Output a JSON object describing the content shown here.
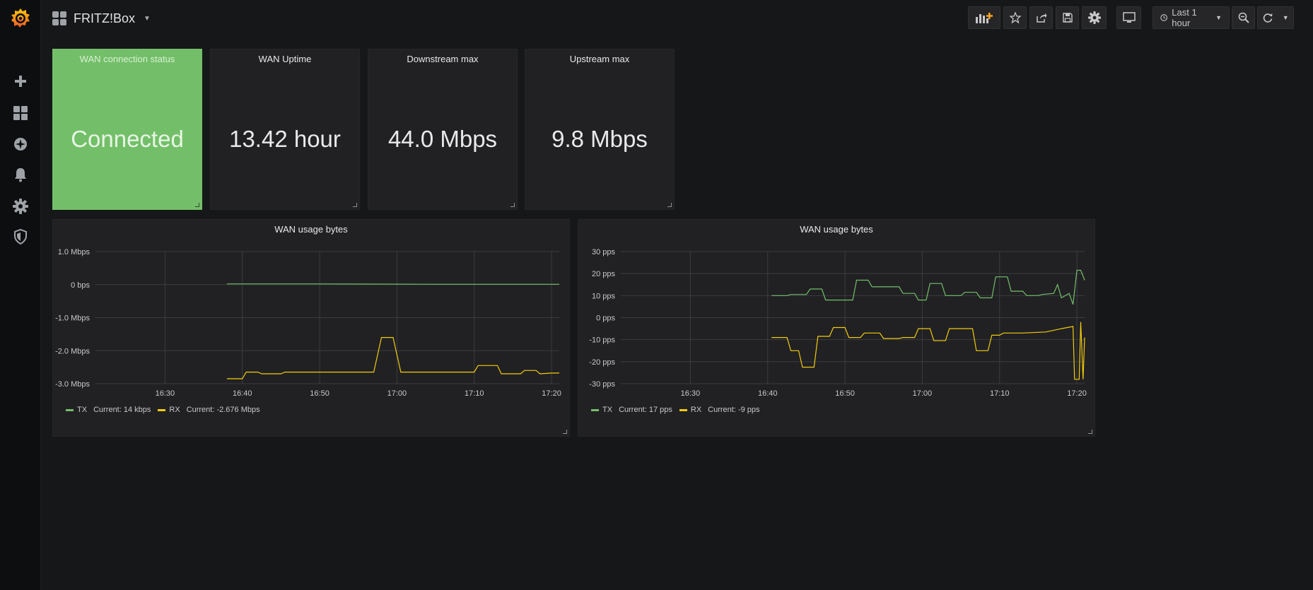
{
  "dashboard": {
    "title": "FRITZ!Box"
  },
  "toolbar": {
    "time_range": "Last 1 hour"
  },
  "colors": {
    "green": "#73bf69",
    "yellow": "#f2cc0c",
    "panel_bg": "#212124",
    "page_bg": "#161719"
  },
  "sidebar": {
    "items": [
      {
        "icon": "plus-icon"
      },
      {
        "icon": "dashboards-icon"
      },
      {
        "icon": "explore-compass-icon"
      },
      {
        "icon": "alerting-bell-icon"
      },
      {
        "icon": "configuration-gear-icon"
      },
      {
        "icon": "admin-shield-icon"
      }
    ]
  },
  "stats": [
    {
      "title": "WAN connection status",
      "value": "Connected"
    },
    {
      "title": "WAN Uptime",
      "value": "13.42 hour"
    },
    {
      "title": "Downstream max",
      "value": "44.0 Mbps"
    },
    {
      "title": "Upstream max",
      "value": "9.8 Mbps"
    }
  ],
  "graphs": [
    {
      "title": "WAN usage bytes",
      "legend": [
        {
          "name": "TX",
          "current": "Current: 14 kbps"
        },
        {
          "name": "RX",
          "current": "Current: -2.676 Mbps"
        }
      ]
    },
    {
      "title": "WAN usage bytes",
      "legend": [
        {
          "name": "TX",
          "current": "Current: 17 pps"
        },
        {
          "name": "RX",
          "current": "Current: -9 pps"
        }
      ]
    }
  ],
  "chart_data": [
    {
      "type": "line",
      "title": "WAN usage bytes",
      "yunit": "Mbps",
      "ylim": [
        -3.0,
        1.0
      ],
      "yticks": [
        1.0,
        0.0,
        -1.0,
        -2.0,
        -3.0
      ],
      "ytick_labels": [
        "1.0 Mbps",
        "0 bps",
        "-1.0 Mbps",
        "-2.0 Mbps",
        "-3.0 Mbps"
      ],
      "xlim": [
        "16:21",
        "17:21"
      ],
      "xticks": [
        "16:30",
        "16:40",
        "16:50",
        "17:00",
        "17:10",
        "17:20"
      ],
      "grid": true,
      "legend_position": "bottom-left",
      "series": [
        {
          "name": "TX",
          "color": "#73bf69",
          "points": [
            [
              "16:38",
              0.02
            ],
            [
              "16:50",
              0.02
            ],
            [
              "17:05",
              0.01
            ],
            [
              "17:20",
              0.01
            ],
            [
              "17:21",
              0.01
            ]
          ]
        },
        {
          "name": "RX",
          "color": "#f2cc0c",
          "points": [
            [
              "16:38",
              -2.85
            ],
            [
              "16:40",
              -2.85
            ],
            [
              "16:40.5",
              -2.65
            ],
            [
              "16:42",
              -2.65
            ],
            [
              "16:42.5",
              -2.7
            ],
            [
              "16:45",
              -2.7
            ],
            [
              "16:45.5",
              -2.65
            ],
            [
              "16:52",
              -2.65
            ],
            [
              "16:57",
              -2.65
            ],
            [
              "16:58",
              -1.6
            ],
            [
              "16:59.5",
              -1.6
            ],
            [
              "17:00.5",
              -2.65
            ],
            [
              "17:05",
              -2.65
            ],
            [
              "17:10",
              -2.65
            ],
            [
              "17:10.5",
              -2.45
            ],
            [
              "17:13",
              -2.45
            ],
            [
              "17:13.5",
              -2.7
            ],
            [
              "17:16",
              -2.7
            ],
            [
              "17:16.5",
              -2.6
            ],
            [
              "17:18",
              -2.6
            ],
            [
              "17:18.5",
              -2.7
            ],
            [
              "17:20",
              -2.68
            ],
            [
              "17:21",
              -2.676
            ]
          ]
        }
      ]
    },
    {
      "type": "line",
      "title": "WAN usage bytes",
      "yunit": "pps",
      "ylim": [
        -30,
        30
      ],
      "yticks": [
        30,
        20,
        10,
        0,
        -10,
        -20,
        -30
      ],
      "ytick_labels": [
        "30 pps",
        "20 pps",
        "10 pps",
        "0 pps",
        "-10 pps",
        "-20 pps",
        "-30 pps"
      ],
      "xlim": [
        "16:21",
        "17:21"
      ],
      "xticks": [
        "16:30",
        "16:40",
        "16:50",
        "17:00",
        "17:10",
        "17:20"
      ],
      "grid": true,
      "legend_position": "bottom-left",
      "series": [
        {
          "name": "TX",
          "color": "#73bf69",
          "points": [
            [
              "16:40.5",
              10
            ],
            [
              "16:42.5",
              10
            ],
            [
              "16:43",
              10.5
            ],
            [
              "16:45",
              10.5
            ],
            [
              "16:45.5",
              13
            ],
            [
              "16:47",
              13
            ],
            [
              "16:47.5",
              8
            ],
            [
              "16:51",
              8
            ],
            [
              "16:51.5",
              17
            ],
            [
              "16:53",
              17
            ],
            [
              "16:53.5",
              14
            ],
            [
              "16:57",
              14
            ],
            [
              "16:57.5",
              11
            ],
            [
              "16:59",
              11
            ],
            [
              "16:59.5",
              8
            ],
            [
              "17:00.5",
              8
            ],
            [
              "17:01",
              15.5
            ],
            [
              "17:02.5",
              15.5
            ],
            [
              "17:03",
              10
            ],
            [
              "17:05",
              10
            ],
            [
              "17:05.5",
              11.5
            ],
            [
              "17:07",
              11.5
            ],
            [
              "17:07.5",
              9
            ],
            [
              "17:09",
              9
            ],
            [
              "17:09.5",
              18.5
            ],
            [
              "17:11",
              18.5
            ],
            [
              "17:11.5",
              12
            ],
            [
              "17:13",
              12
            ],
            [
              "17:13.5",
              10
            ],
            [
              "17:15",
              10
            ],
            [
              "17:15.5",
              10.5
            ],
            [
              "17:17",
              11
            ],
            [
              "17:17.5",
              15
            ],
            [
              "17:18",
              9
            ],
            [
              "17:19",
              11
            ],
            [
              "17:19.5",
              6
            ],
            [
              "17:20",
              21.5
            ],
            [
              "17:20.5",
              21.5
            ],
            [
              "17:21",
              17
            ]
          ]
        },
        {
          "name": "RX",
          "color": "#f2cc0c",
          "points": [
            [
              "16:40.5",
              -9
            ],
            [
              "16:42.5",
              -9
            ],
            [
              "16:43",
              -15
            ],
            [
              "16:44",
              -15
            ],
            [
              "16:44.5",
              -22.5
            ],
            [
              "16:46",
              -22.5
            ],
            [
              "16:46.5",
              -8.5
            ],
            [
              "16:48",
              -8.5
            ],
            [
              "16:48.5",
              -4.5
            ],
            [
              "16:50",
              -4.5
            ],
            [
              "16:50.5",
              -9
            ],
            [
              "16:52",
              -9
            ],
            [
              "16:52.5",
              -7
            ],
            [
              "16:54.5",
              -7
            ],
            [
              "16:55",
              -9.5
            ],
            [
              "16:57",
              -9.5
            ],
            [
              "16:57.5",
              -9
            ],
            [
              "16:59",
              -9
            ],
            [
              "16:59.5",
              -5
            ],
            [
              "17:01",
              -5
            ],
            [
              "17:01.5",
              -10.5
            ],
            [
              "17:03",
              -10.5
            ],
            [
              "17:03.5",
              -5
            ],
            [
              "17:06",
              -5
            ],
            [
              "17:06.5",
              -5
            ],
            [
              "17:07",
              -15
            ],
            [
              "17:08.5",
              -15
            ],
            [
              "17:09",
              -8
            ],
            [
              "17:10",
              -8
            ],
            [
              "17:10.5",
              -7
            ],
            [
              "17:13",
              -7
            ],
            [
              "17:16",
              -6.5
            ],
            [
              "17:18",
              -5
            ],
            [
              "17:19.5",
              -4
            ],
            [
              "17:19.7",
              -28
            ],
            [
              "17:20.3",
              -28
            ],
            [
              "17:20.5",
              -2
            ],
            [
              "17:20.8",
              -28
            ],
            [
              "17:21",
              -9
            ]
          ]
        }
      ]
    }
  ]
}
